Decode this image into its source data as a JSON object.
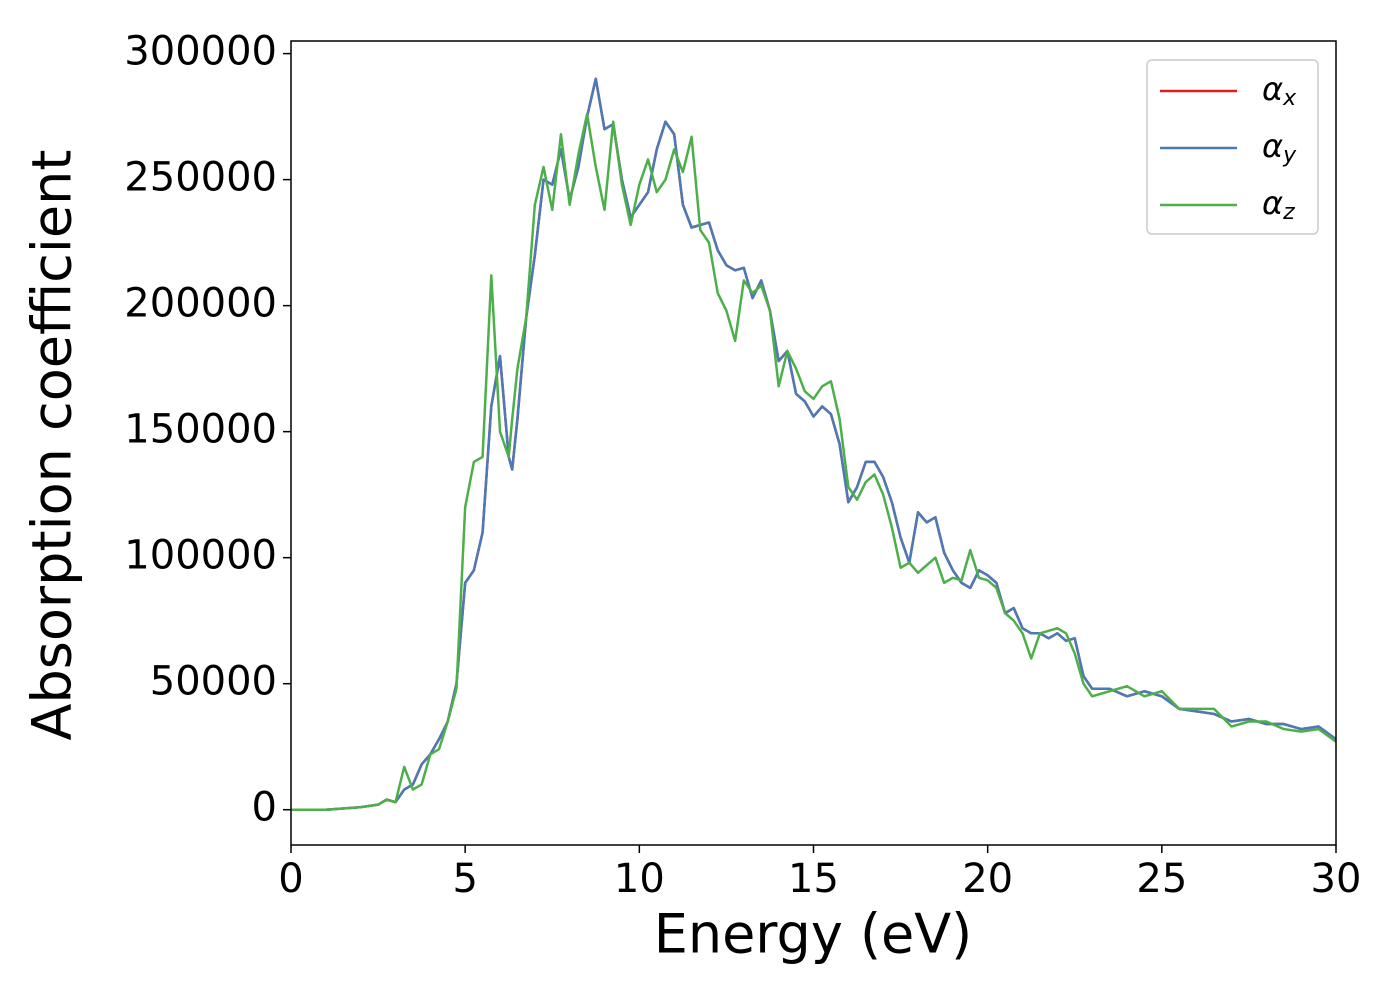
{
  "chart_data": {
    "type": "line",
    "xlabel": "Energy (eV)",
    "ylabel": "Absorption coefficient",
    "x": [
      0,
      1,
      2,
      2.5,
      2.75,
      3,
      3.25,
      3.5,
      3.75,
      4,
      4.25,
      4.5,
      4.75,
      5,
      5.25,
      5.5,
      5.75,
      6,
      6.25,
      6.35,
      6.5,
      6.75,
      7,
      7.25,
      7.5,
      7.75,
      8,
      8.25,
      8.5,
      8.75,
      9,
      9.25,
      9.5,
      9.75,
      10,
      10.25,
      10.5,
      10.75,
      11,
      11.25,
      11.5,
      11.75,
      12,
      12.25,
      12.5,
      12.75,
      13,
      13.25,
      13.5,
      13.75,
      14,
      14.25,
      14.5,
      14.75,
      15,
      15.25,
      15.5,
      15.75,
      16,
      16.25,
      16.5,
      16.75,
      17,
      17.25,
      17.5,
      17.75,
      18,
      18.25,
      18.5,
      18.75,
      19,
      19.25,
      19.5,
      19.75,
      20,
      20.25,
      20.5,
      20.75,
      21,
      21.25,
      21.5,
      21.75,
      22,
      22.25,
      22.5,
      22.75,
      23,
      23.5,
      24,
      24.5,
      25,
      25.5,
      26,
      26.5,
      27,
      27.5,
      28,
      28.5,
      29,
      29.5,
      30
    ],
    "series": [
      {
        "name": "αx",
        "color": "#e41a1c",
        "values": [
          0,
          0,
          1000,
          2000,
          4000,
          3000,
          8000,
          10000,
          18000,
          22000,
          28000,
          35000,
          50000,
          90000,
          95000,
          110000,
          160000,
          180000,
          140000,
          135000,
          155000,
          195000,
          220000,
          250000,
          248000,
          262000,
          242000,
          255000,
          275000,
          290000,
          270000,
          272000,
          250000,
          235000,
          240000,
          245000,
          262000,
          273000,
          268000,
          240000,
          231000,
          232000,
          233000,
          222000,
          216000,
          214000,
          215000,
          203000,
          210000,
          198000,
          178000,
          182000,
          165000,
          162000,
          156000,
          160000,
          157000,
          145000,
          122000,
          128000,
          138000,
          138000,
          132000,
          122000,
          108000,
          98000,
          118000,
          114000,
          116000,
          102000,
          95000,
          90000,
          88000,
          95000,
          93000,
          90000,
          78000,
          80000,
          72000,
          70000,
          70000,
          68000,
          70000,
          67000,
          68000,
          53000,
          48000,
          48000,
          45000,
          47000,
          45000,
          40000,
          39000,
          38000,
          35000,
          36000,
          34000,
          34000,
          32000,
          33000,
          28000
        ]
      },
      {
        "name": "αy",
        "color": "#4a7ab8",
        "values": [
          0,
          0,
          1000,
          2000,
          4000,
          3000,
          8000,
          10000,
          18000,
          22000,
          28000,
          35000,
          50000,
          90000,
          95000,
          110000,
          160000,
          180000,
          140000,
          135000,
          155000,
          195000,
          220000,
          250000,
          248000,
          262000,
          242000,
          255000,
          275000,
          290000,
          270000,
          272000,
          250000,
          235000,
          240000,
          245000,
          262000,
          273000,
          268000,
          240000,
          231000,
          232000,
          233000,
          222000,
          216000,
          214000,
          215000,
          203000,
          210000,
          198000,
          178000,
          182000,
          165000,
          162000,
          156000,
          160000,
          157000,
          145000,
          122000,
          128000,
          138000,
          138000,
          132000,
          122000,
          108000,
          98000,
          118000,
          114000,
          116000,
          102000,
          95000,
          90000,
          88000,
          95000,
          93000,
          90000,
          78000,
          80000,
          72000,
          70000,
          70000,
          68000,
          70000,
          67000,
          68000,
          53000,
          48000,
          48000,
          45000,
          47000,
          45000,
          40000,
          39000,
          38000,
          35000,
          36000,
          34000,
          34000,
          32000,
          33000,
          28000
        ]
      },
      {
        "name": "αz",
        "color": "#4daf4a",
        "values": [
          0,
          0,
          1000,
          2000,
          4000,
          3000,
          17000,
          8000,
          10000,
          22000,
          24000,
          35000,
          48000,
          120000,
          138000,
          140000,
          212000,
          150000,
          140000,
          155000,
          175000,
          195000,
          240000,
          255000,
          238000,
          268000,
          240000,
          260000,
          276000,
          255000,
          238000,
          273000,
          248000,
          232000,
          248000,
          258000,
          245000,
          250000,
          262000,
          253000,
          267000,
          230000,
          225000,
          205000,
          198000,
          186000,
          210000,
          205000,
          208000,
          198000,
          168000,
          182000,
          175000,
          166000,
          163000,
          168000,
          170000,
          155000,
          128000,
          123000,
          130000,
          133000,
          125000,
          112000,
          96000,
          98000,
          94000,
          97000,
          100000,
          90000,
          92000,
          91000,
          103000,
          92000,
          91000,
          88000,
          78000,
          75000,
          70000,
          60000,
          70000,
          71000,
          72000,
          70000,
          62000,
          50000,
          45000,
          47000,
          49000,
          45000,
          47000,
          40000,
          40000,
          40000,
          33000,
          35000,
          35000,
          32000,
          31000,
          32000,
          27000
        ]
      }
    ],
    "xlim": [
      0,
      30
    ],
    "xticks": [
      0,
      5,
      10,
      15,
      20,
      25,
      30
    ],
    "ylim": [
      -14000,
      305000
    ],
    "yticks": [
      0,
      50000,
      100000,
      150000,
      200000,
      250000,
      300000
    ],
    "grid": false,
    "legend": "upper right"
  }
}
